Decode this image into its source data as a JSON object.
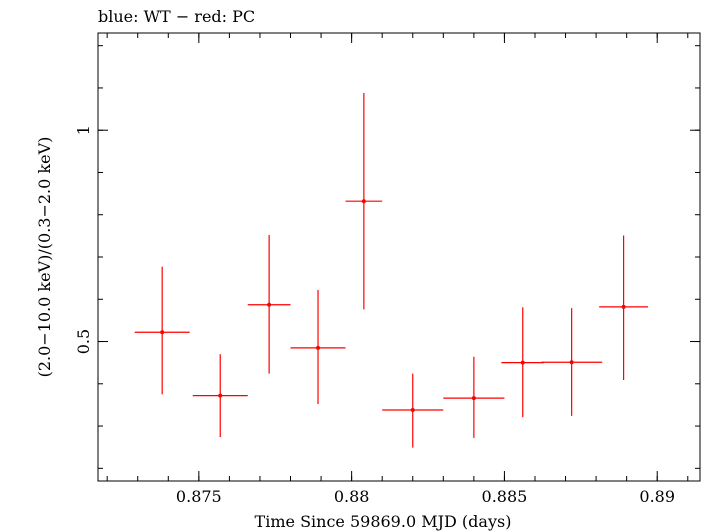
{
  "chart_data": {
    "type": "scatter",
    "title": "blue: WT − red: PC",
    "xlabel": "Time Since 59869.0 MJD (days)",
    "ylabel": "(2.0−10.0 keV)/(0.3−2.0 keV)",
    "xlim": [
      0.8717,
      0.8914
    ],
    "ylim": [
      0.17,
      1.23
    ],
    "x_ticks": [
      {
        "value": 0.875,
        "label": "0.875"
      },
      {
        "value": 0.88,
        "label": "0.88"
      },
      {
        "value": 0.885,
        "label": "0.885"
      },
      {
        "value": 0.89,
        "label": "0.89"
      }
    ],
    "y_ticks": [
      {
        "value": 0.5,
        "label": "0.5"
      },
      {
        "value": 1.0,
        "label": "1"
      }
    ],
    "x_minor_step": 0.001,
    "y_minor_step": 0.1,
    "series": [
      {
        "name": "PC",
        "color": "#ff0000",
        "points": [
          {
            "x": 0.8738,
            "xerr": 0.0009,
            "y": 0.522,
            "yerr_low": 0.147,
            "yerr_high": 0.155
          },
          {
            "x": 0.8757,
            "xerr": 0.0009,
            "y": 0.372,
            "yerr_low": 0.098,
            "yerr_high": 0.098
          },
          {
            "x": 0.8773,
            "xerr": 0.0007,
            "y": 0.587,
            "yerr_low": 0.163,
            "yerr_high": 0.165
          },
          {
            "x": 0.8789,
            "xerr": 0.0009,
            "y": 0.485,
            "yerr_low": 0.133,
            "yerr_high": 0.137
          },
          {
            "x": 0.8804,
            "xerr": 0.0006,
            "y": 0.832,
            "yerr_low": 0.256,
            "yerr_high": 0.256
          },
          {
            "x": 0.882,
            "xerr": 0.001,
            "y": 0.338,
            "yerr_low": 0.089,
            "yerr_high": 0.086
          },
          {
            "x": 0.884,
            "xerr": 0.001,
            "y": 0.366,
            "yerr_low": 0.094,
            "yerr_high": 0.098
          },
          {
            "x": 0.8856,
            "xerr": 0.0007,
            "y": 0.45,
            "yerr_low": 0.129,
            "yerr_high": 0.131
          },
          {
            "x": 0.8872,
            "xerr": 0.001,
            "y": 0.451,
            "yerr_low": 0.127,
            "yerr_high": 0.128
          },
          {
            "x": 0.8889,
            "xerr": 0.0008,
            "y": 0.582,
            "yerr_low": 0.173,
            "yerr_high": 0.169
          }
        ]
      }
    ]
  }
}
